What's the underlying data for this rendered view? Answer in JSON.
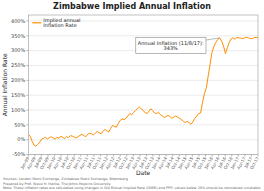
{
  "chart_data": {
    "type": "line",
    "title": "Zimbabwe Implied Annual Inflation",
    "xlabel": "Date",
    "ylabel": "Annual Inflation Rate",
    "legend": "upper left",
    "grid": true,
    "xlim": [
      0,
      120
    ],
    "xticks": [
      {
        "value": 0,
        "label": "Jan-09"
      },
      {
        "value": 3.4285714285714284,
        "label": "Apr-09"
      },
      {
        "value": 6.857142857142857,
        "label": "Jul-09"
      },
      {
        "value": 10.285714285714286,
        "label": "Oct-09"
      },
      {
        "value": 13.714285714285714,
        "label": "Jan-10"
      },
      {
        "value": 17.142857142857142,
        "label": "Apr-10"
      },
      {
        "value": 20.571428571428573,
        "label": "Jul-10"
      },
      {
        "value": 24,
        "label": "Oct-10"
      },
      {
        "value": 27.428571428571427,
        "label": "Jan-11"
      },
      {
        "value": 30.857142857142858,
        "label": "Apr-11"
      },
      {
        "value": 34.285714285714285,
        "label": "Jul-11"
      },
      {
        "value": 37.714285714285715,
        "label": "Oct-11"
      },
      {
        "value": 41.142857142857146,
        "label": "Jan-12"
      },
      {
        "value": 44.57142857142857,
        "label": "Apr-12"
      },
      {
        "value": 48,
        "label": "Jul-12"
      },
      {
        "value": 51.42857142857143,
        "label": "Oct-12"
      },
      {
        "value": 54.857142857142854,
        "label": "Jan-13"
      },
      {
        "value": 58.285714285714285,
        "label": "Apr-13"
      },
      {
        "value": 61.714285714285715,
        "label": "Jul-13"
      },
      {
        "value": 65.14285714285714,
        "label": "Oct-13"
      },
      {
        "value": 68.57142857142857,
        "label": "Jan-14"
      },
      {
        "value": 72,
        "label": "Apr-14"
      },
      {
        "value": 75.42857142857143,
        "label": "Jul-14"
      },
      {
        "value": 78.85714285714286,
        "label": "Oct-14"
      },
      {
        "value": 82.28571428571429,
        "label": "Jan-15"
      },
      {
        "value": 85.71428571428571,
        "label": "Apr-15"
      },
      {
        "value": 89.14285714285714,
        "label": "Jul-15"
      },
      {
        "value": 92.57142857142857,
        "label": "Oct-15"
      },
      {
        "value": 96,
        "label": "Jan-16"
      },
      {
        "value": 99.42857142857143,
        "label": "Apr-16"
      },
      {
        "value": 102.85714285714286,
        "label": "Jul-16"
      },
      {
        "value": 106.28571428571429,
        "label": "Oct-16"
      },
      {
        "value": 109.71428571428571,
        "label": "Jan-17"
      },
      {
        "value": 113.14285714285714,
        "label": "Apr-17"
      },
      {
        "value": 116.57142857142857,
        "label": "Jul-17"
      },
      {
        "value": 120,
        "label": "Oct-17"
      }
    ],
    "ylim": [
      -50,
      420
    ],
    "yticks": [
      {
        "value": -50,
        "label": "-50%"
      },
      {
        "value": 0,
        "label": "0%"
      },
      {
        "value": 50,
        "label": "50%"
      },
      {
        "value": 100,
        "label": "100%"
      },
      {
        "value": 150,
        "label": "150%"
      },
      {
        "value": 200,
        "label": "200%"
      },
      {
        "value": 250,
        "label": "250%"
      },
      {
        "value": 300,
        "label": "300%"
      },
      {
        "value": 350,
        "label": "350%"
      },
      {
        "value": 400,
        "label": "400%"
      }
    ],
    "series": [
      {
        "name": "Implied annual\nInflation Rate",
        "color": "#FF8C00",
        "values": [
          18,
          12,
          -5,
          -18,
          -22,
          -15,
          -8,
          2,
          5,
          8,
          3,
          7,
          10,
          6,
          2,
          8,
          5,
          12,
          8,
          4,
          10,
          7,
          14,
          12,
          9,
          6,
          10,
          15,
          18,
          14,
          10,
          18,
          22,
          20,
          16,
          22,
          28,
          24,
          20,
          28,
          35,
          30,
          26,
          38,
          48,
          45,
          42,
          55,
          65,
          70,
          68,
          72,
          80,
          88,
          84,
          92,
          98,
          105,
          110,
          105,
          98,
          92,
          88,
          96,
          104,
          98,
          90,
          88,
          92,
          85,
          80,
          75,
          78,
          82,
          78,
          72,
          76,
          80,
          76,
          72,
          68,
          62,
          58,
          62,
          58,
          52,
          60,
          72,
          80,
          88,
          90,
          125,
          155,
          175,
          215,
          255,
          295,
          315,
          328,
          338,
          343,
          332,
          315,
          290,
          310,
          328,
          340,
          343,
          338,
          345,
          343,
          342,
          340,
          343,
          345,
          343,
          341,
          340,
          344,
          345,
          343
        ]
      }
    ],
    "annotations": [
      {
        "text": "Annual Inflation (11/8/17):\n343%",
        "x": 100,
        "y": 343
      }
    ],
    "footer": [
      "Sources: London Stock Exchange, Zimbabwe Stock Exchange, Bloomberg",
      "Prepared by Prof. Steve H. Hanke, The Johns Hopkins University",
      "Note: These inflation rates are calculated using changes in Old Mutual Implied Rate (OMIR) and PPP; values below 20% should be considered unreliable"
    ]
  }
}
